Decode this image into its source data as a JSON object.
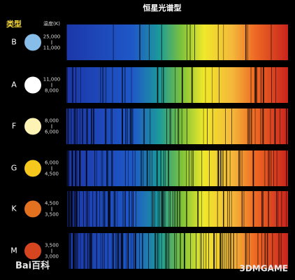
{
  "title": "恒星光谱型",
  "header": {
    "type": "类型",
    "temperature": "温度(K)"
  },
  "rows": [
    {
      "type": "B",
      "high": "25,000",
      "low": "11,000",
      "color": "#86bde9"
    },
    {
      "type": "A",
      "high": "11,000",
      "low": "8,000",
      "color": "#ffffff"
    },
    {
      "type": "F",
      "high": "8,000",
      "low": "6,000",
      "color": "#fdf3b4"
    },
    {
      "type": "G",
      "high": "6,000",
      "low": "4,500",
      "color": "#f6c71c"
    },
    {
      "type": "K",
      "high": "4,500",
      "low": "3,500",
      "color": "#e4711f"
    },
    {
      "type": "M",
      "high": "3,500",
      "low": "3,000",
      "color": "#d44520"
    }
  ],
  "watermarks": {
    "left": "Bai百科",
    "right": "3DMGAME"
  }
}
